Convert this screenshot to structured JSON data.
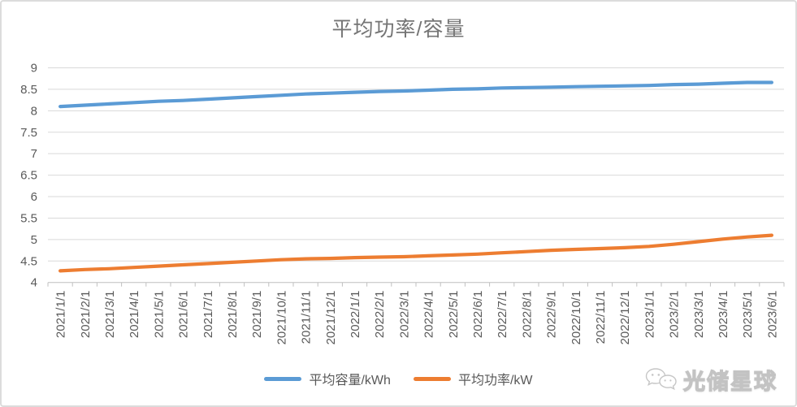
{
  "title": "平均功率/容量",
  "watermark": {
    "text": "光储星球"
  },
  "style": {
    "grid_color": "#D9D9D9",
    "axis_color": "#BFBFBF",
    "tick_label_color": "#595959",
    "title_color": "#757575",
    "frame_border_color": "#DCDCDC"
  },
  "chart_data": {
    "type": "line",
    "title": "平均功率/容量",
    "xlabel": "",
    "ylabel": "",
    "ylim": [
      4,
      9
    ],
    "ytick_step": 0.5,
    "grid": true,
    "legend_position": "bottom",
    "categories": [
      "2021/1/1",
      "2021/2/1",
      "2021/3/1",
      "2021/4/1",
      "2021/5/1",
      "2021/6/1",
      "2021/7/1",
      "2021/8/1",
      "2021/9/1",
      "2021/10/1",
      "2021/11/1",
      "2021/12/1",
      "2022/1/1",
      "2022/2/1",
      "2022/3/1",
      "2022/4/1",
      "2022/5/1",
      "2022/6/1",
      "2022/7/1",
      "2022/8/1",
      "2022/9/1",
      "2022/10/1",
      "2022/11/1",
      "2022/12/1",
      "2023/1/1",
      "2023/2/1",
      "2023/3/1",
      "2023/4/1",
      "2023/5/1",
      "2023/6/1"
    ],
    "series": [
      {
        "name": "平均容量/kWh",
        "color": "#5B9BD5",
        "values": [
          8.1,
          8.13,
          8.16,
          8.19,
          8.22,
          8.24,
          8.27,
          8.3,
          8.33,
          8.36,
          8.39,
          8.41,
          8.43,
          8.45,
          8.46,
          8.48,
          8.5,
          8.51,
          8.53,
          8.54,
          8.55,
          8.56,
          8.57,
          8.58,
          8.59,
          8.61,
          8.62,
          8.64,
          8.66,
          8.66
        ]
      },
      {
        "name": "平均功率/kW",
        "color": "#ED7D31",
        "values": [
          4.27,
          4.3,
          4.32,
          4.35,
          4.38,
          4.41,
          4.44,
          4.47,
          4.5,
          4.53,
          4.55,
          4.56,
          4.58,
          4.59,
          4.6,
          4.62,
          4.64,
          4.66,
          4.69,
          4.72,
          4.75,
          4.77,
          4.79,
          4.81,
          4.84,
          4.89,
          4.95,
          5.01,
          5.06,
          5.1
        ]
      }
    ]
  }
}
